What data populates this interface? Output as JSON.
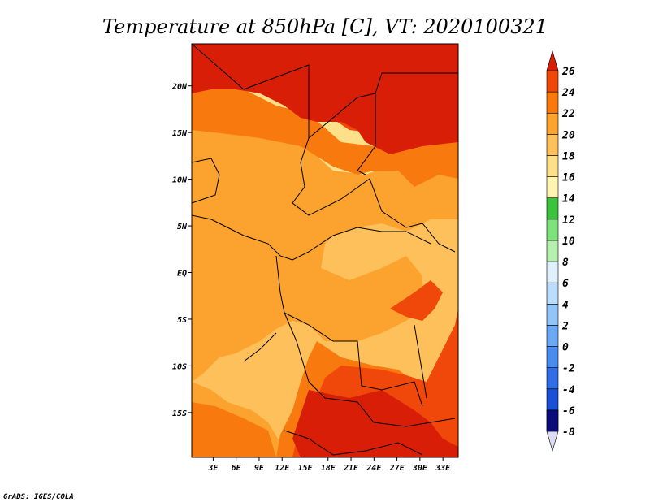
{
  "chart_data": {
    "type": "heatmap",
    "title": "Temperature at 850hPa [C], VT: 2020100321",
    "x_tick_labels": [
      "3E",
      "6E",
      "9E",
      "12E",
      "15E",
      "18E",
      "21E",
      "24E",
      "27E",
      "30E",
      "33E"
    ],
    "x_ticks": [
      3,
      6,
      9,
      12,
      15,
      18,
      21,
      24,
      27,
      30,
      33
    ],
    "y_tick_labels": [
      "20N",
      "15N",
      "10N",
      "5N",
      "EQ",
      "5S",
      "10S",
      "15S"
    ],
    "y_ticks": [
      20,
      15,
      10,
      5,
      0,
      -5,
      -10,
      -15
    ],
    "xlim": [
      0.2,
      35
    ],
    "ylim": [
      -19.8,
      24.5
    ],
    "colorbar": {
      "levels": [
        -8,
        -6,
        -4,
        -2,
        0,
        2,
        4,
        6,
        8,
        10,
        12,
        14,
        16,
        18,
        20,
        22,
        24,
        26
      ],
      "colors": [
        "#0a0a78",
        "#0d2cb5",
        "#1a4fd6",
        "#2f6ee6",
        "#4a8bf0",
        "#6aa8f4",
        "#92c4f7",
        "#bcdcfb",
        "#dff0fd",
        "#b6f0b0",
        "#7ee27a",
        "#3cc23c",
        "#fff4b0",
        "#ffe08a",
        "#fdc05a",
        "#fba32e",
        "#f87a0f",
        "#f0480a",
        "#d91e08"
      ],
      "under_color": "#dcdcf5",
      "over_color": "#d91e08"
    },
    "field_bands": [
      {
        "label": "14-16",
        "color": "#ffe08a"
      },
      {
        "label": "16-18",
        "color": "#fdc05a"
      },
      {
        "label": "18-20",
        "color": "#fba32e"
      },
      {
        "label": "20-22",
        "color": "#f87a0f"
      },
      {
        "label": "22-24",
        "color": "#f0480a"
      },
      {
        "label": ">24",
        "color": "#d91e08"
      }
    ]
  },
  "credit": "GrADS: IGES/COLA"
}
